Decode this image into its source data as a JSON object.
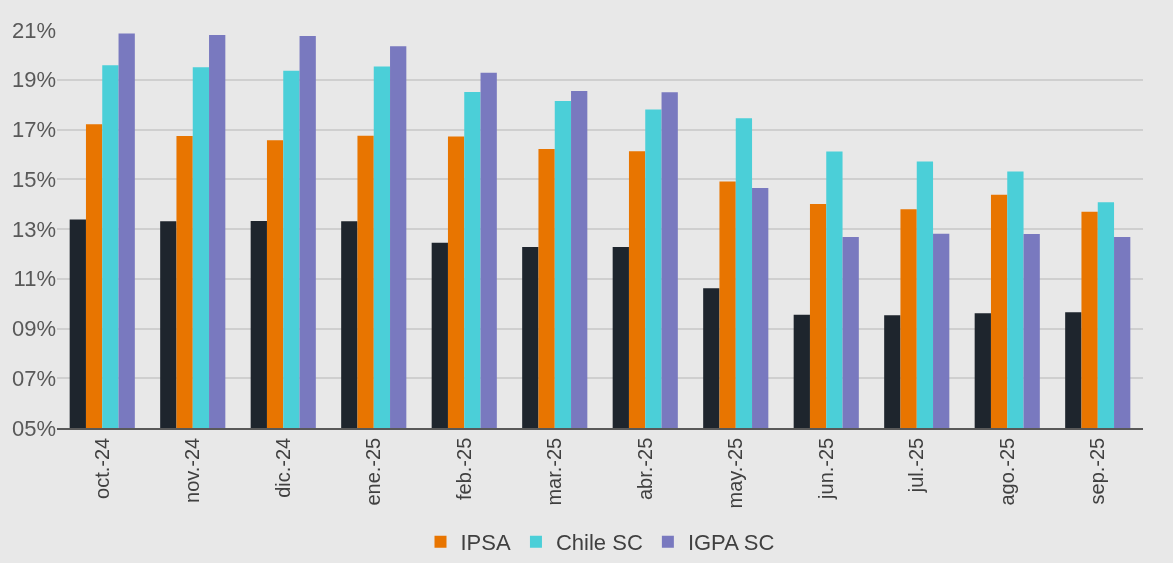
{
  "chart_data": {
    "type": "bar",
    "categories": [
      "oct.-24",
      "nov.-24",
      "dic.-24",
      "ene.-25",
      "feb.-25",
      "mar.-25",
      "abr.-25",
      "may.-25",
      "jun.-25",
      "jul.-25",
      "ago.-25",
      "sep.-25"
    ],
    "series": [
      {
        "color": "#1e252d",
        "values": [
          13.38,
          13.31,
          13.32,
          13.31,
          12.45,
          12.28,
          12.28,
          10.62,
          9.55,
          9.53,
          9.61,
          9.65
        ]
      },
      {
        "name": "IPSA",
        "color": "#e87500",
        "values": [
          17.21,
          16.74,
          16.57,
          16.75,
          16.72,
          16.22,
          16.13,
          14.91,
          14.01,
          13.79,
          14.38,
          13.69
        ]
      },
      {
        "name": "Chile SC",
        "color": "#4bcfd8",
        "values": [
          19.58,
          19.5,
          19.36,
          19.53,
          18.51,
          18.15,
          17.8,
          17.45,
          16.12,
          15.71,
          15.31,
          14.08
        ]
      },
      {
        "name": "IGPA SC",
        "color": "#7979bf",
        "values": [
          20.86,
          20.8,
          20.76,
          20.35,
          19.28,
          18.55,
          18.5,
          14.65,
          12.68,
          12.81,
          12.8,
          12.68
        ]
      }
    ],
    "ylim": [
      5,
      21
    ],
    "yticks": [
      {
        "value": 5,
        "label": "05%"
      },
      {
        "value": 7,
        "label": "07%"
      },
      {
        "value": 9,
        "label": "09%"
      },
      {
        "value": 11,
        "label": "11%"
      },
      {
        "value": 13,
        "label": "13%"
      },
      {
        "value": 15,
        "label": "15%"
      },
      {
        "value": 17,
        "label": "17%"
      },
      {
        "value": 19,
        "label": "19%"
      },
      {
        "value": 21,
        "label": "21%"
      }
    ],
    "grid": "y",
    "legend": "bottom"
  }
}
